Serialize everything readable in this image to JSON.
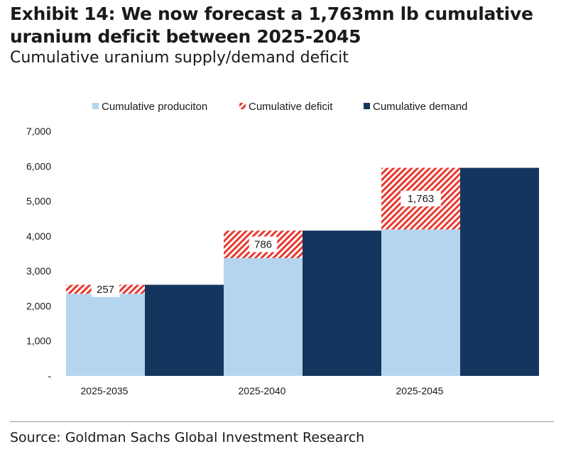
{
  "header": {
    "title": "Exhibit 14: We now forecast a 1,763mn lb cumulative uranium deficit between 2025-2045",
    "subtitle": "Cumulative uranium supply/demand deficit"
  },
  "footer": {
    "source": "Source: Goldman Sachs Global Investment Research"
  },
  "chart_data": {
    "type": "bar",
    "categories": [
      "2025-2035",
      "2025-2040",
      "2025-2045"
    ],
    "series": [
      {
        "name": "Cumulative produciton",
        "values": [
          2350,
          3370,
          4190
        ],
        "color": "#b5d5ee"
      },
      {
        "name": "Cumulative deficit",
        "values": [
          257,
          786,
          1763
        ],
        "color": "#e8382e",
        "pattern": "diagonal-hatch",
        "labels": [
          "257",
          "786",
          "1,763"
        ]
      },
      {
        "name": "Cumulative demand",
        "values": [
          2607,
          4156,
          5953
        ],
        "color": "#14365e"
      }
    ],
    "stacked_groups": [
      [
        "Cumulative produciton",
        "Cumulative deficit"
      ],
      [
        "Cumulative demand"
      ]
    ],
    "yticks": [
      "-",
      "1,000",
      "2,000",
      "3,000",
      "4,000",
      "5,000",
      "6,000",
      "7,000"
    ],
    "ylim": [
      0,
      7000
    ],
    "grid": false,
    "legend_position": "top"
  }
}
